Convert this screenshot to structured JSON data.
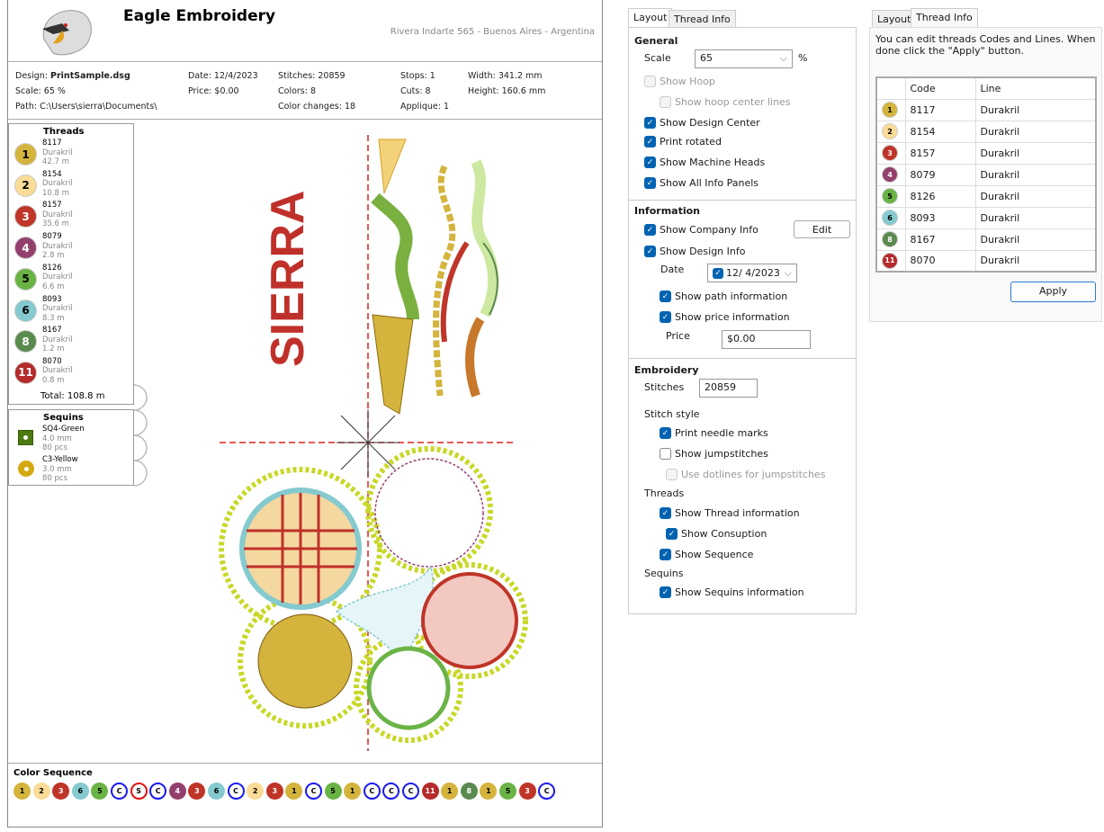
{
  "company": {
    "name": "Eagle Embroidery",
    "address": "Rivera Indarte 565 - Buenos Aires - Argentina"
  },
  "design_info": {
    "design_label": "Design: ",
    "design_value": "PrintSample.dsg",
    "scale": "Scale: 65 %",
    "path": "Path: C:\\Users\\sierra\\Documents\\",
    "date": "Date: 12/4/2023",
    "price": "Price: $0.00",
    "stitches": "Stitches: 20859",
    "colors": "Colors: 8",
    "color_changes": "Color changes: 18",
    "stops": "Stops: 1",
    "cuts": "Cuts: 8",
    "applique": "Applique: 1",
    "width": "Width: 341.2 mm",
    "height": "Height: 160.6 mm"
  },
  "threads_panel": {
    "title": "Threads",
    "total": "Total: 108.8 m",
    "items": [
      {
        "num": "1",
        "code": "8117",
        "line": "Durakril",
        "length": "42.7 m",
        "color": "#d4b43c",
        "fg": "#000"
      },
      {
        "num": "2",
        "code": "8154",
        "line": "Durakril",
        "length": "10.8 m",
        "color": "#fbdc96",
        "fg": "#000"
      },
      {
        "num": "3",
        "code": "8157",
        "line": "Durakril",
        "length": "35.6 m",
        "color": "#bf3528",
        "fg": "#fff"
      },
      {
        "num": "4",
        "code": "8079",
        "line": "Durakril",
        "length": "2.8 m",
        "color": "#93406e",
        "fg": "#fff"
      },
      {
        "num": "5",
        "code": "8126",
        "line": "Durakril",
        "length": "6.6 m",
        "color": "#6ab446",
        "fg": "#000"
      },
      {
        "num": "6",
        "code": "8093",
        "line": "Durakril",
        "length": "8.3 m",
        "color": "#84cacf",
        "fg": "#000"
      },
      {
        "num": "8",
        "code": "8167",
        "line": "Durakril",
        "length": "1.2 m",
        "color": "#5a8a4e",
        "fg": "#fff"
      },
      {
        "num": "11",
        "code": "8070",
        "line": "Durakril",
        "length": "0.8 m",
        "color": "#b52a2a",
        "fg": "#fff"
      }
    ]
  },
  "sequins_panel": {
    "title": "Sequins",
    "items": [
      {
        "name": "SQ4-Green",
        "size": "4.0 mm",
        "count": "80 pcs",
        "color": "#4a7a10"
      },
      {
        "name": "C3-Yellow",
        "size": "3.0 mm",
        "count": "80 pcs",
        "color": "#d4a810"
      }
    ]
  },
  "design_text": "SIERRA",
  "color_sequence": {
    "title": "Color Sequence",
    "items": [
      "1",
      "2",
      "3",
      "6",
      "5",
      "C",
      "S",
      "C",
      "4",
      "3",
      "6",
      "C",
      "2",
      "3",
      "1",
      "C",
      "5",
      "1",
      "C",
      "C",
      "C",
      "11",
      "1",
      "8",
      "1",
      "5",
      "3",
      "C"
    ]
  },
  "layout_panel": {
    "tabs": [
      "Layout",
      "Thread Info"
    ],
    "general": "General",
    "scale_label": "Scale",
    "scale_value": "65",
    "percent": "%",
    "show_hoop": "Show Hoop",
    "show_hoop_center": "Show hoop center lines",
    "show_design_center": "Show Design Center",
    "print_rotated": "Print rotated",
    "show_machine_heads": "Show Machine Heads",
    "show_all_info": "Show All Info Panels",
    "information": "Information",
    "show_company": "Show Company Info",
    "edit": "Edit",
    "show_design_info": "Show Design Info",
    "date_label": "Date",
    "date_value": "12/  4/2023",
    "show_path": "Show path information",
    "show_price": "Show price information",
    "price_label": "Price",
    "price_value": "$0.00",
    "embroidery": "Embroidery",
    "stitches_label": "Stitches",
    "stitches_value": "20859",
    "stitch_style": "Stitch style",
    "print_needle": "Print needle marks",
    "show_jump": "Show jumpstitches",
    "use_dotlines": "Use dotlines for jumpstitches",
    "threads": "Threads",
    "show_thread_info": "Show Thread information",
    "show_consumption": "Show Consuption",
    "show_sequence": "Show Sequence",
    "sequins": "Sequins",
    "show_sequins": "Show Sequins information"
  },
  "thread_info_panel": {
    "tabs": [
      "Layout",
      "Thread Info"
    ],
    "description": "You can edit threads Codes and Lines. When done click the \"Apply\" button.",
    "col_code": "Code",
    "col_line": "Line",
    "apply": "Apply"
  }
}
